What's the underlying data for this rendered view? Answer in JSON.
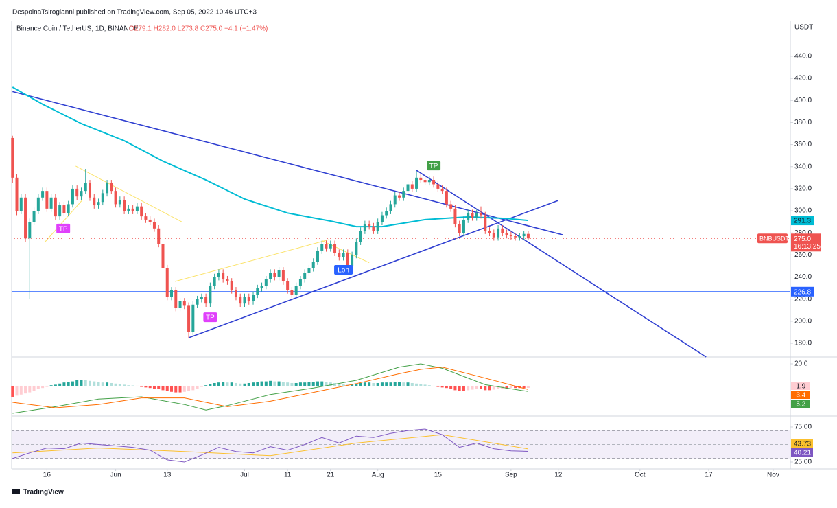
{
  "page": {
    "byline": "DespoinaTsirogianni published on TradingView.com, Sep 05, 2022 10:46 UTC+3",
    "footer": "TradingView"
  },
  "chart_data": [
    {
      "type": "candlestick",
      "title": "Binance Coin / TetherUS, 1D, BINANCE",
      "ohlc_text": "O279.1 H282.0 L273.8 C275.0 −4.1 (−1.47%)",
      "unit": "USDT",
      "up_color": "#26a69a",
      "down_color": "#ef5350",
      "xlim": [
        -0.2,
        181
      ],
      "ylim": [
        167.6,
        472.3
      ],
      "xticks": [
        {
          "value": 8,
          "label": "16"
        },
        {
          "value": 24,
          "label": "Jun"
        },
        {
          "value": 36,
          "label": "13"
        },
        {
          "value": 54,
          "label": "Jul"
        },
        {
          "value": 64,
          "label": "11"
        },
        {
          "value": 74,
          "label": "21"
        },
        {
          "value": 85,
          "label": "Aug"
        },
        {
          "value": 99,
          "label": "15"
        },
        {
          "value": 116,
          "label": "Sep"
        },
        {
          "value": 127,
          "label": "12"
        },
        {
          "value": 146,
          "label": "Oct"
        },
        {
          "value": 162,
          "label": "17"
        },
        {
          "value": 177,
          "label": "Nov"
        }
      ],
      "yticks": [
        {
          "value": 180,
          "label": "180.0"
        },
        {
          "value": 200,
          "label": "200.0"
        },
        {
          "value": 220,
          "label": "220.0"
        },
        {
          "value": 240,
          "label": "240.0"
        },
        {
          "value": 260,
          "label": "260.0"
        },
        {
          "value": 280,
          "label": "280.0"
        },
        {
          "value": 300,
          "label": "300.0"
        },
        {
          "value": 320,
          "label": "320.0"
        },
        {
          "value": 340,
          "label": "340.0"
        },
        {
          "value": 360,
          "label": "360.0"
        },
        {
          "value": 380,
          "label": "380.0"
        },
        {
          "value": 400,
          "label": "400.0"
        },
        {
          "value": 420,
          "label": "420.0"
        },
        {
          "value": 440,
          "label": "440.0"
        }
      ],
      "x": [
        0,
        1,
        2,
        3,
        4,
        5,
        6,
        7,
        8,
        9,
        10,
        11,
        12,
        13,
        14,
        15,
        16,
        17,
        18,
        19,
        20,
        21,
        22,
        23,
        24,
        25,
        26,
        27,
        28,
        29,
        30,
        31,
        32,
        33,
        34,
        35,
        36,
        37,
        38,
        39,
        40,
        41,
        42,
        43,
        44,
        45,
        46,
        47,
        48,
        49,
        50,
        51,
        52,
        53,
        54,
        55,
        56,
        57,
        58,
        59,
        60,
        61,
        62,
        63,
        64,
        65,
        66,
        67,
        68,
        69,
        70,
        71,
        72,
        73,
        74,
        75,
        76,
        77,
        78,
        79,
        80,
        81,
        82,
        83,
        84,
        85,
        86,
        87,
        88,
        89,
        90,
        91,
        92,
        93,
        94,
        95,
        96,
        97,
        98,
        99,
        100,
        101,
        102,
        103,
        104,
        105,
        106,
        107,
        108,
        109,
        110,
        111,
        112,
        113,
        114,
        115,
        116,
        117,
        118,
        119,
        120
      ],
      "open": [
        366,
        330,
        300,
        312,
        275,
        290,
        300,
        312,
        318,
        302,
        312,
        295,
        305,
        298,
        306,
        320,
        313,
        318,
        325,
        312,
        305,
        308,
        316,
        325,
        318,
        306,
        310,
        300,
        302,
        300,
        304,
        295,
        292,
        290,
        284,
        270,
        248,
        222,
        228,
        212,
        218,
        214,
        190,
        215,
        220,
        222,
        216,
        232,
        240,
        244,
        238,
        236,
        228,
        222,
        216,
        222,
        218,
        224,
        230,
        232,
        238,
        244,
        240,
        246,
        236,
        228,
        224,
        232,
        238,
        244,
        248,
        254,
        264,
        270,
        266,
        270,
        262,
        258,
        262,
        250,
        260,
        272,
        282,
        288,
        286,
        282,
        290,
        296,
        300,
        306,
        314,
        312,
        318,
        324,
        320,
        330,
        328,
        326,
        328,
        324,
        320,
        318,
        306,
        302,
        288,
        280,
        292,
        298,
        294,
        298,
        296,
        282,
        280,
        276,
        284,
        280,
        278,
        277,
        276,
        277,
        279.1
      ],
      "high": [
        368,
        333,
        315,
        315,
        293,
        303,
        315,
        321,
        321,
        315,
        315,
        308,
        308,
        309,
        323,
        323,
        321,
        338,
        328,
        315,
        311,
        319,
        328,
        328,
        321,
        313,
        313,
        305,
        305,
        307,
        307,
        298,
        295,
        293,
        287,
        273,
        251,
        231,
        231,
        221,
        221,
        217,
        218,
        223,
        225,
        225,
        235,
        243,
        247,
        247,
        241,
        239,
        231,
        225,
        225,
        225,
        227,
        233,
        235,
        241,
        247,
        247,
        249,
        249,
        239,
        231,
        235,
        241,
        247,
        251,
        257,
        267,
        273,
        273,
        273,
        273,
        265,
        265,
        265,
        263,
        275,
        285,
        291,
        291,
        289,
        293,
        299,
        303,
        309,
        317,
        317,
        321,
        327,
        327,
        336,
        333,
        331,
        331,
        331,
        327,
        323,
        321,
        309,
        305,
        291,
        295,
        301,
        301,
        301,
        304,
        299,
        285,
        283,
        287,
        287,
        283,
        281,
        280,
        280,
        282,
        282.0
      ],
      "low": [
        325,
        296,
        297,
        272,
        220,
        287,
        297,
        309,
        299,
        299,
        292,
        292,
        295,
        295,
        303,
        310,
        310,
        315,
        309,
        302,
        302,
        305,
        313,
        315,
        303,
        303,
        297,
        297,
        297,
        297,
        292,
        289,
        287,
        281,
        267,
        245,
        219,
        219,
        209,
        209,
        211,
        185,
        187,
        212,
        217,
        213,
        213,
        229,
        237,
        235,
        233,
        225,
        219,
        213,
        213,
        215,
        215,
        221,
        227,
        229,
        235,
        237,
        237,
        233,
        225,
        221,
        221,
        229,
        235,
        241,
        245,
        251,
        261,
        263,
        263,
        259,
        255,
        255,
        247,
        247,
        257,
        269,
        279,
        283,
        279,
        279,
        287,
        293,
        297,
        303,
        309,
        309,
        315,
        317,
        317,
        325,
        323,
        323,
        321,
        317,
        315,
        303,
        299,
        285,
        277,
        277,
        289,
        291,
        291,
        293,
        279,
        277,
        273,
        273,
        277,
        275,
        274,
        273,
        273,
        274,
        273.8
      ],
      "close": [
        330,
        300,
        312,
        275,
        290,
        300,
        312,
        318,
        302,
        312,
        295,
        305,
        298,
        306,
        320,
        313,
        318,
        325,
        312,
        305,
        308,
        316,
        325,
        318,
        306,
        310,
        300,
        302,
        300,
        304,
        295,
        292,
        290,
        284,
        270,
        248,
        222,
        228,
        212,
        218,
        214,
        190,
        215,
        220,
        222,
        216,
        232,
        240,
        244,
        238,
        236,
        228,
        222,
        216,
        222,
        218,
        224,
        230,
        232,
        238,
        244,
        240,
        246,
        236,
        228,
        224,
        232,
        238,
        244,
        248,
        254,
        264,
        270,
        266,
        270,
        262,
        258,
        262,
        250,
        260,
        272,
        282,
        288,
        286,
        282,
        290,
        296,
        300,
        306,
        314,
        312,
        318,
        324,
        320,
        330,
        328,
        326,
        328,
        324,
        320,
        318,
        306,
        302,
        288,
        280,
        292,
        298,
        294,
        298,
        296,
        282,
        280,
        276,
        284,
        280,
        278,
        277,
        276,
        277,
        279.1,
        275.0
      ],
      "last_price": {
        "value": 275.0,
        "label": "275.0"
      },
      "symbol": "BNBUSDT",
      "countdown": "16:13:25",
      "ma": {
        "color": "#00bcd4",
        "x": [
          0,
          7,
          16,
          26,
          35,
          45,
          54,
          64,
          74,
          80,
          86,
          96,
          106,
          115,
          120
        ],
        "values": [
          412,
          396.5,
          379,
          363.5,
          345,
          328,
          310.6,
          298,
          290.7,
          285.7,
          285.7,
          292,
          294.5,
          293,
          291.3
        ]
      },
      "hline": {
        "value": 226.8,
        "color": "#2962ff"
      },
      "trendlines": [
        {
          "from": [
            0,
            408
          ],
          "to": [
            128,
            278.3
          ],
          "color": "#2f3fd1"
        },
        {
          "from": [
            41,
            185
          ],
          "to": [
            127,
            309.4
          ],
          "color": "#2f3fd1"
        },
        {
          "from": [
            94,
            336.7
          ],
          "to": [
            161.4,
            167.6
          ],
          "color": "#2f3fd1"
        },
        {
          "from": [
            14.7,
            340.5
          ],
          "to": [
            39.4,
            290
          ],
          "color": "#fbe36b"
        },
        {
          "from": [
            7.6,
            272
          ],
          "to": [
            16.3,
            310
          ],
          "color": "#fbe36b"
        },
        {
          "from": [
            37.8,
            236
          ],
          "to": [
            73.7,
            274
          ],
          "color": "#fbe36b"
        },
        {
          "from": [
            72,
            273
          ],
          "to": [
            83,
            253
          ],
          "color": "#fbe36b"
        }
      ],
      "annotations": [
        {
          "text": "TP",
          "x": 11.8,
          "y": 284,
          "color": "#e040fb"
        },
        {
          "text": "TP",
          "x": 46,
          "y": 203.6,
          "color": "#e040fb"
        },
        {
          "text": "TP",
          "x": 98,
          "y": 341,
          "color": "#43a047"
        },
        {
          "text": "Lon",
          "x": 77,
          "y": 246.6,
          "color": "#2962ff"
        }
      ]
    },
    {
      "type": "macd",
      "ylim": [
        -26.9,
        25
      ],
      "yticks": [
        {
          "value": 20,
          "label": "20.0"
        }
      ],
      "hist_values": [
        -10,
        -9,
        -8,
        -7,
        -6,
        -5,
        -3,
        -2,
        -1,
        0.5,
        1,
        2,
        3,
        3.5,
        4,
        5,
        5.5,
        5,
        4.5,
        4,
        3.5,
        3,
        3,
        2.5,
        2,
        1.5,
        1,
        0.5,
        0.3,
        -0.5,
        -1,
        -1.5,
        -2,
        -2.5,
        -3,
        -4,
        -5,
        -5.5,
        -6,
        -6,
        -5.5,
        -5,
        -4,
        -2.5,
        -1,
        0.5,
        1.5,
        2.5,
        3,
        3.5,
        3,
        3,
        2.5,
        2,
        2,
        2.5,
        3,
        3.5,
        4,
        4,
        4.5,
        4,
        4,
        3.5,
        3,
        2.5,
        2.5,
        3,
        3,
        3.5,
        3.5,
        4,
        4,
        3.5,
        3,
        2.5,
        2,
        1.5,
        1,
        1.5,
        2,
        2.5,
        3,
        3,
        2.5,
        2.5,
        3,
        3,
        3,
        3.5,
        3.5,
        3,
        3,
        2.5,
        2,
        1.5,
        1,
        0.5,
        0,
        -1,
        -1.5,
        -2,
        -3,
        -4,
        -4.5,
        -4.5,
        -4,
        -3.5,
        -3,
        -3,
        -4,
        -4,
        -3.5,
        -3,
        -2.5,
        -2.5,
        -2,
        -2,
        -2,
        -2,
        -1.9
      ],
      "series": [
        {
          "color": "#43a047",
          "x": [
            0,
            10,
            20,
            30,
            40,
            45,
            50,
            60,
            70,
            80,
            90,
            95,
            100,
            110,
            120
          ],
          "values": [
            -25,
            -19,
            -12,
            -10,
            -17,
            -22,
            -18,
            -8,
            -2,
            5,
            17,
            20,
            16,
            1,
            -5.2
          ]
        },
        {
          "color": "#ff6d00",
          "x": [
            0,
            10,
            20,
            30,
            40,
            45,
            50,
            60,
            70,
            80,
            90,
            95,
            100,
            110,
            120
          ],
          "values": [
            -15,
            -20,
            -17,
            -11,
            -11,
            -15,
            -19,
            -14,
            -6,
            2,
            11,
            15,
            17,
            7,
            -3.4
          ]
        }
      ]
    },
    {
      "type": "rsi",
      "ylim": [
        15.2,
        88.7
      ],
      "yticks": [
        {
          "value": 25,
          "label": "25.00"
        },
        {
          "value": 75,
          "label": "75.00"
        }
      ],
      "band": [
        30,
        70
      ],
      "midline": 50,
      "series": [
        {
          "color": "#fbc02d",
          "x": [
            0,
            20,
            40,
            60,
            80,
            100,
            120
          ],
          "values": [
            38,
            45,
            40,
            34,
            52,
            64,
            43.73
          ]
        },
        {
          "color": "#7e57c2",
          "x": [
            0,
            4,
            8,
            12,
            16,
            20,
            24,
            28,
            32,
            36,
            40,
            44,
            48,
            52,
            56,
            60,
            64,
            68,
            72,
            76,
            80,
            84,
            88,
            92,
            96,
            100,
            104,
            108,
            112,
            116,
            120
          ],
          "values": [
            30,
            38,
            45,
            44,
            52,
            50,
            48,
            46,
            42,
            28,
            25,
            35,
            46,
            40,
            38,
            47,
            42,
            50,
            60,
            52,
            62,
            60,
            66,
            70,
            72,
            64,
            46,
            52,
            44,
            41,
            40.21
          ]
        }
      ]
    }
  ]
}
